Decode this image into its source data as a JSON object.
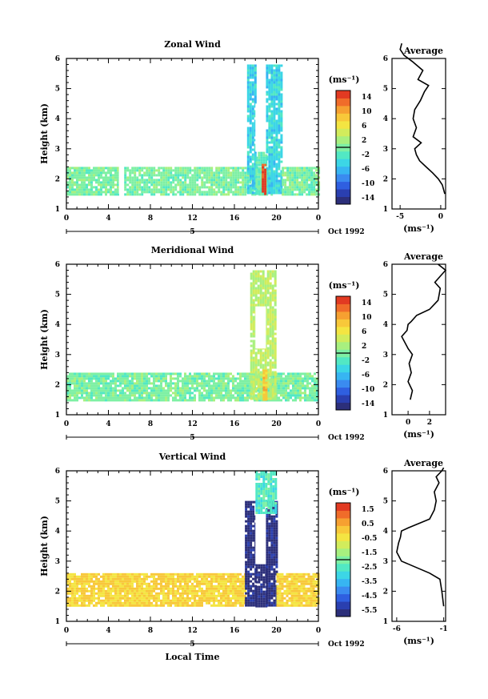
{
  "colors": {
    "colorbar": [
      "#2c2f7a",
      "#2a3fb0",
      "#2f5fe0",
      "#3a8bf0",
      "#37b5f2",
      "#3cd6e6",
      "#52e8c4",
      "#7ef0a4",
      "#a8f07f",
      "#d2ec5c",
      "#f4e542",
      "#f8c83a",
      "#f6a031",
      "#f06c2a",
      "#e23a22"
    ]
  },
  "panels": [
    {
      "title": "Zonal Wind",
      "ylabel": "Height (km)",
      "yticks": [
        "1",
        "2",
        "3",
        "4",
        "5",
        "6"
      ],
      "xticks": [
        "0",
        "4",
        "8",
        "12",
        "16",
        "20",
        "0"
      ],
      "date_label": "5",
      "date_right": "Oct 1992",
      "xlabel": "",
      "unit": "(ms⁻¹)",
      "cb_labels": [
        "14",
        "10",
        "6",
        "2",
        "-2",
        "-6",
        "-10",
        "-14"
      ],
      "avg_title": "Average",
      "avg_xticks": [
        "-5",
        "0"
      ],
      "avg_xlabel": "(ms⁻¹)"
    },
    {
      "title": "Meridional Wind",
      "ylabel": "Height (km)",
      "yticks": [
        "1",
        "2",
        "3",
        "4",
        "5",
        "6"
      ],
      "xticks": [
        "0",
        "4",
        "8",
        "12",
        "16",
        "20",
        "0"
      ],
      "date_label": "5",
      "date_right": "Oct 1992",
      "xlabel": "",
      "unit": "(ms⁻¹)",
      "cb_labels": [
        "14",
        "10",
        "6",
        "2",
        "-2",
        "-6",
        "-10",
        "-14"
      ],
      "avg_title": "Average",
      "avg_xticks": [
        "0",
        "2"
      ],
      "avg_xlabel": "(ms⁻¹)"
    },
    {
      "title": "Vertical Wind",
      "ylabel": "Height (km)",
      "yticks": [
        "1",
        "2",
        "3",
        "4",
        "5",
        "6"
      ],
      "xticks": [
        "0",
        "4",
        "8",
        "12",
        "16",
        "20",
        "0"
      ],
      "date_label": "5",
      "date_right": "Oct 1992",
      "xlabel": "Local Time",
      "unit": "(ms⁻¹)",
      "cb_labels": [
        "1.5",
        "0.5",
        "-0.5",
        "-1.5",
        "-2.5",
        "-3.5",
        "-4.5",
        "-5.5"
      ],
      "avg_title": "Average",
      "avg_xticks": [
        "-6",
        "-1"
      ],
      "avg_xlabel": "(ms⁻¹)"
    }
  ],
  "chart_data": [
    {
      "type": "heatmap",
      "title": "Zonal Wind",
      "xlabel": "",
      "ylabel": "Height (km)",
      "xlim": [
        0,
        24
      ],
      "ylim": [
        1,
        6
      ],
      "colorbar_range": [
        -14,
        14
      ],
      "regions": [
        {
          "x": [
            0,
            5
          ],
          "y": [
            1.5,
            2.4
          ],
          "value": 0
        },
        {
          "x": [
            5,
            5.5
          ],
          "y": [
            1.5,
            2.4
          ],
          "value": null
        },
        {
          "x": [
            5.5,
            13.5
          ],
          "y": [
            1.5,
            2.4
          ],
          "value": 0
        },
        {
          "x": [
            13.5,
            19.5
          ],
          "y": [
            1.5,
            2.4
          ],
          "value": 0
        },
        {
          "x": [
            17.2,
            18.0
          ],
          "y": [
            1.5,
            5.8
          ],
          "value": -4
        },
        {
          "x": [
            19.0,
            20.5
          ],
          "y": [
            1.5,
            5.8
          ],
          "value": -4
        },
        {
          "x": [
            18.0,
            19.0
          ],
          "y": [
            2.9,
            4.5
          ],
          "value": null
        },
        {
          "x": [
            18.0,
            19.0
          ],
          "y": [
            1.5,
            2.9
          ],
          "value": -1
        },
        {
          "x": [
            18.6,
            18.9
          ],
          "y": [
            1.5,
            2.5
          ],
          "value": 14
        },
        {
          "x": [
            20.5,
            24
          ],
          "y": [
            1.5,
            2.4
          ],
          "value": 0
        }
      ],
      "average": {
        "x": [
          0.5,
          0.2,
          -0.3,
          -1.0,
          -1.8,
          -2.6,
          -3.0,
          -3.2,
          -2.4,
          -3.4,
          -3.0,
          -3.4,
          -3.2,
          -2.5,
          -2.0,
          -1.5,
          -2.8,
          -2.2,
          -3.5,
          -4.5,
          -5.0,
          -4.8
        ],
        "y": [
          1.5,
          1.8,
          2.0,
          2.2,
          2.4,
          2.6,
          2.8,
          3.0,
          3.2,
          3.4,
          3.7,
          4.0,
          4.3,
          4.6,
          4.9,
          5.1,
          5.3,
          5.6,
          5.9,
          6.1,
          6.3,
          6.5
        ],
        "xlim": [
          -6,
          0.6
        ],
        "ylim": [
          1,
          6
        ]
      }
    },
    {
      "type": "heatmap",
      "title": "Meridional Wind",
      "xlabel": "",
      "ylabel": "Height (km)",
      "xlim": [
        0,
        24
      ],
      "ylim": [
        1,
        6
      ],
      "colorbar_range": [
        -14,
        14
      ],
      "regions": [
        {
          "x": [
            0,
            24
          ],
          "y": [
            1.5,
            2.4
          ],
          "value": 0
        },
        {
          "x": [
            17.5,
            20.0
          ],
          "y": [
            1.5,
            5.8
          ],
          "value": 3
        },
        {
          "x": [
            18.0,
            19.0
          ],
          "y": [
            3.2,
            4.6
          ],
          "value": null
        },
        {
          "x": [
            18.7,
            19.0
          ],
          "y": [
            1.5,
            2.5
          ],
          "value": 8
        }
      ],
      "average": {
        "x": [
          0.2,
          0.4,
          0.0,
          0.3,
          0.1,
          0.4,
          0.0,
          -0.3,
          -0.6,
          -0.1,
          0.0,
          0.3,
          0.8,
          2.0,
          2.8,
          2.9,
          3.0,
          2.5,
          3.0,
          3.5,
          2.8
        ],
        "y": [
          1.5,
          1.8,
          2.1,
          2.4,
          2.7,
          3.0,
          3.2,
          3.4,
          3.6,
          3.8,
          4.0,
          4.1,
          4.3,
          4.5,
          4.8,
          5.0,
          5.2,
          5.4,
          5.6,
          5.8,
          6.0
        ],
        "xlim": [
          -1.5,
          3.5
        ],
        "ylim": [
          1,
          6
        ]
      }
    },
    {
      "type": "heatmap",
      "title": "Vertical Wind",
      "xlabel": "Local Time",
      "ylabel": "Height (km)",
      "xlim": [
        0,
        24
      ],
      "ylim": [
        1,
        6
      ],
      "colorbar_range": [
        -5.5,
        1.5
      ],
      "regions": [
        {
          "x": [
            0,
            17.0
          ],
          "y": [
            1.5,
            2.6
          ],
          "value": -0.2
        },
        {
          "x": [
            17.0,
            18.0
          ],
          "y": [
            1.5,
            5.0
          ],
          "value": -5.5
        },
        {
          "x": [
            18.0,
            19.0
          ],
          "y": [
            1.5,
            2.9
          ],
          "value": -5.5
        },
        {
          "x": [
            18.0,
            19.0
          ],
          "y": [
            2.9,
            4.6
          ],
          "value": null
        },
        {
          "x": [
            19.0,
            20.0
          ],
          "y": [
            1.5,
            5.0
          ],
          "value": -5.5
        },
        {
          "x": [
            18.0,
            20.0
          ],
          "y": [
            4.6,
            6.0
          ],
          "value": -2.5
        },
        {
          "x": [
            20.0,
            24.0
          ],
          "y": [
            1.5,
            2.6
          ],
          "value": -0.2
        }
      ],
      "average": {
        "x": [
          -1.0,
          -1.2,
          -1.4,
          -2.5,
          -4.0,
          -5.5,
          -6.0,
          -5.8,
          -5.6,
          -5.5,
          -4.8,
          -2.5,
          -2.0,
          -1.8,
          -2.0,
          -1.5,
          -1.8,
          -1.2,
          -1.0
        ],
        "y": [
          1.5,
          2.0,
          2.4,
          2.6,
          2.8,
          3.0,
          3.3,
          3.6,
          3.8,
          4.0,
          4.1,
          4.4,
          4.7,
          5.0,
          5.3,
          5.6,
          5.8,
          6.0,
          6.1
        ],
        "xlim": [
          -6.5,
          -0.8
        ],
        "ylim": [
          1,
          6
        ]
      }
    }
  ]
}
